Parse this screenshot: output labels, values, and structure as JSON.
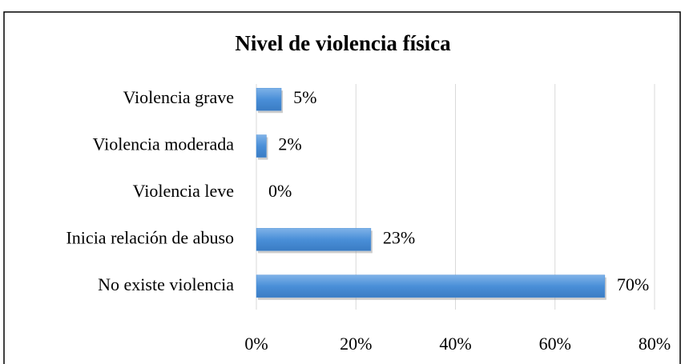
{
  "chart_data": {
    "type": "bar",
    "orientation": "horizontal",
    "title": "Nivel de violencia física",
    "categories": [
      "Violencia grave",
      "Violencia moderada",
      "Violencia leve",
      "Inicia relación de abuso",
      "No existe violencia"
    ],
    "values": [
      5,
      2,
      0,
      23,
      70
    ],
    "value_labels": [
      "5%",
      "2%",
      "0%",
      "23%",
      "70%"
    ],
    "color": "#4a8fd8",
    "xlim": [
      0,
      80
    ],
    "xticks": [
      {
        "value": 0,
        "label": "0%"
      },
      {
        "value": 20,
        "label": "20%"
      },
      {
        "value": 40,
        "label": "40%"
      },
      {
        "value": 60,
        "label": "60%"
      },
      {
        "value": 80,
        "label": "80%"
      }
    ],
    "grid": true
  }
}
